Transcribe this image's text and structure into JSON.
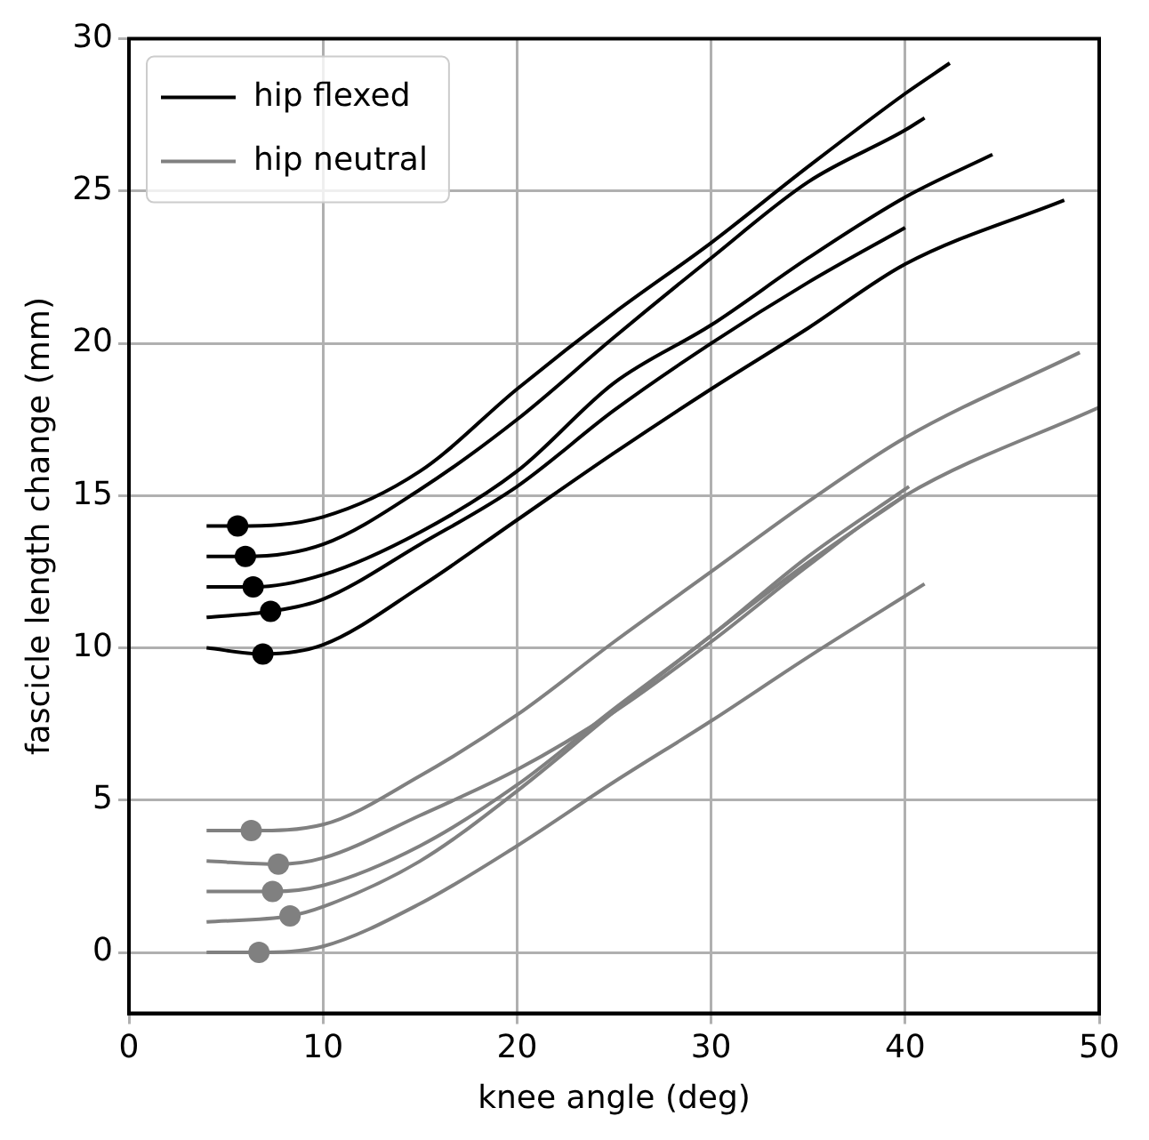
{
  "chart_data": {
    "type": "line",
    "xlabel": "knee angle (deg)",
    "ylabel": "fascicle length change (mm)",
    "xlim": [
      0,
      50
    ],
    "ylim": [
      -2,
      30
    ],
    "xticks": [
      0,
      10,
      20,
      30,
      40,
      50
    ],
    "yticks": [
      0,
      5,
      10,
      15,
      20,
      25,
      30
    ],
    "grid": true,
    "legend": "top left",
    "marker": "none",
    "line_style": "solid",
    "series": [
      {
        "name": "hip flexed",
        "color": "#000000",
        "x": [
          4,
          5.6,
          10,
          15,
          20,
          25,
          30,
          35,
          40,
          42.3
        ],
        "values": [
          14,
          14,
          14.3,
          15.8,
          18.5,
          21,
          23.3,
          25.8,
          28.2,
          29.2
        ]
      },
      {
        "color": "#000000",
        "x": [
          4,
          6,
          10,
          15,
          20,
          25,
          30,
          35,
          40,
          41
        ],
        "values": [
          13,
          13,
          13.4,
          15.2,
          17.5,
          20.2,
          22.8,
          25.3,
          27,
          27.4
        ]
      },
      {
        "color": "#000000",
        "x": [
          4,
          6.4,
          10,
          15,
          20,
          25,
          30,
          35,
          40,
          44.5
        ],
        "values": [
          12,
          12,
          12.4,
          13.8,
          15.8,
          18.7,
          20.6,
          22.8,
          24.8,
          26.2
        ]
      },
      {
        "color": "#000000",
        "x": [
          4,
          7.3,
          10,
          15,
          20,
          25,
          30,
          35,
          40
        ],
        "values": [
          11,
          11.2,
          11.6,
          13.4,
          15.3,
          17.8,
          20,
          22,
          23.8
        ]
      },
      {
        "color": "#000000",
        "x": [
          4,
          6.9,
          10,
          15,
          20,
          25,
          30,
          35,
          40,
          48.2
        ],
        "values": [
          10,
          9.8,
          10.1,
          12,
          14.2,
          16.4,
          18.5,
          20.5,
          22.6,
          24.7
        ]
      },
      {
        "name": "hip neutral",
        "color": "#808080",
        "x": [
          4,
          6.3,
          10,
          15,
          20,
          25,
          30,
          35,
          40,
          49
        ],
        "values": [
          4,
          4,
          4.2,
          5.8,
          7.8,
          10.2,
          12.5,
          14.8,
          16.9,
          19.7
        ]
      },
      {
        "color": "#808080",
        "x": [
          4,
          7.7,
          10,
          15,
          20,
          25,
          30,
          35,
          40,
          50
        ],
        "values": [
          3,
          2.9,
          3.1,
          4.5,
          6,
          7.9,
          10.2,
          12.7,
          15,
          17.9
        ]
      },
      {
        "color": "#808080",
        "x": [
          4,
          7.4,
          10,
          15,
          20,
          25,
          30,
          35,
          40.2
        ],
        "values": [
          2,
          2,
          2.2,
          3.5,
          5.5,
          8,
          10.4,
          13,
          15.3
        ]
      },
      {
        "color": "#808080",
        "x": [
          4,
          8.3,
          10,
          15,
          20,
          25,
          30,
          35,
          40
        ],
        "values": [
          1,
          1.2,
          1.5,
          3,
          5.3,
          7.9,
          10.4,
          12.8,
          15
        ]
      },
      {
        "color": "#808080",
        "x": [
          4,
          6.7,
          10,
          15,
          20,
          25,
          30,
          35,
          41
        ],
        "values": [
          0,
          0,
          0.2,
          1.6,
          3.5,
          5.6,
          7.6,
          9.7,
          12.1
        ]
      },
      {
        "type": "scatter",
        "marker": "circle",
        "color": "#000000",
        "x": [
          5.6,
          6,
          6.4,
          7.3,
          6.9
        ],
        "values": [
          14,
          13,
          12,
          11.2,
          9.8
        ]
      },
      {
        "type": "scatter",
        "marker": "circle",
        "color": "#808080",
        "x": [
          6.3,
          7.7,
          7.4,
          8.3,
          6.7
        ],
        "values": [
          4,
          2.9,
          2,
          1.2,
          0
        ]
      }
    ]
  }
}
